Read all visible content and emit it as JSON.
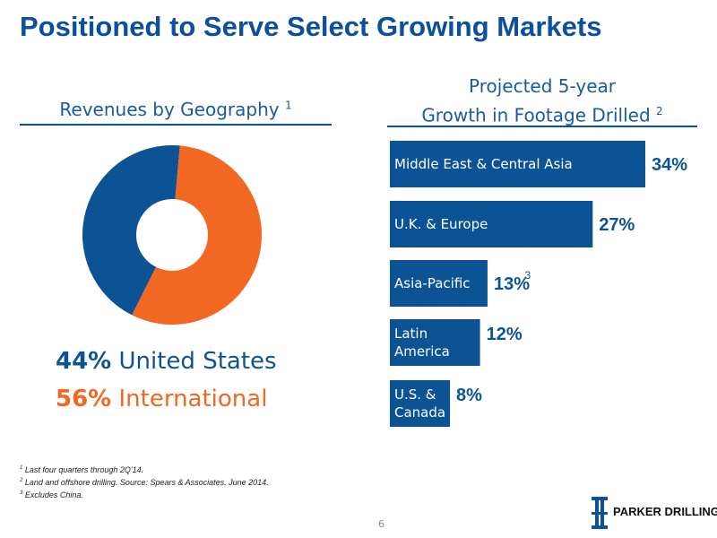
{
  "title": "Positioned to Serve Select Growing Markets",
  "left_panel": {
    "heading": "Revenues by Geography",
    "heading_note": "1",
    "legend": [
      {
        "pct": "44%",
        "label": "United States",
        "color": "#0b5394"
      },
      {
        "pct": "56%",
        "label": "International",
        "color": "#f26722"
      }
    ]
  },
  "right_panel": {
    "heading_line1": "Projected 5-year",
    "heading_line2": "Growth in Footage Drilled",
    "heading_note": "2"
  },
  "chart_data": [
    {
      "type": "pie",
      "title": "Revenues by Geography",
      "donut": true,
      "categories": [
        "United States",
        "International"
      ],
      "values": [
        44,
        56
      ],
      "colors": [
        "#0b5394",
        "#f26722"
      ]
    },
    {
      "type": "bar",
      "orientation": "horizontal",
      "title": "Projected 5-year Growth in Footage Drilled",
      "categories": [
        [
          "Middle East & Central Asia"
        ],
        [
          "U.K. & Europe"
        ],
        [
          "Asia-Pacific"
        ],
        [
          "Latin",
          "America"
        ],
        [
          "U.S. &",
          "Canada"
        ]
      ],
      "values": [
        34,
        27,
        13,
        12,
        8
      ],
      "value_labels": [
        "34%",
        "27%",
        "13%",
        "12%",
        "8%"
      ],
      "value_notes": [
        "",
        "",
        "3",
        "",
        ""
      ],
      "color": "#0b5394"
    }
  ],
  "footnotes": [
    {
      "num": "1",
      "text": "Last four quarters through 2Q'14."
    },
    {
      "num": "2",
      "text": "Land and offshore drilling. Source: Spears & Associates, June 2014."
    },
    {
      "num": "3",
      "text": "Excludes China."
    }
  ],
  "page_number": "6",
  "logo": {
    "text": "PARKER DRILLING"
  }
}
